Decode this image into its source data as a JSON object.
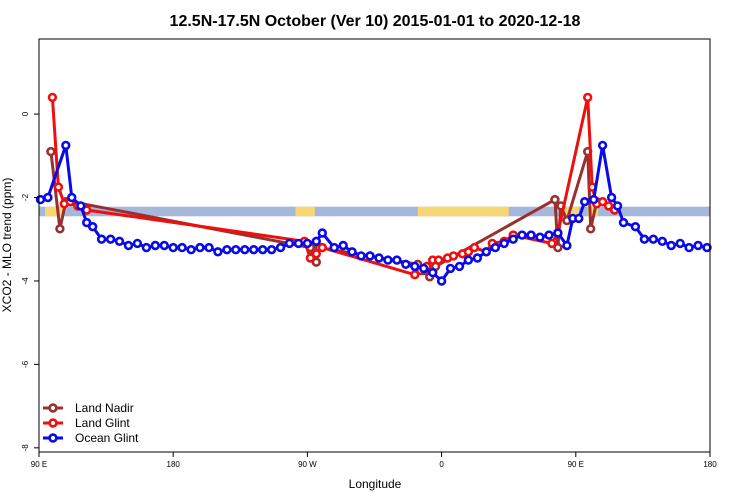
{
  "chart_data": {
    "type": "line",
    "title": "12.5N-17.5N October (Ver 10)   2015-01-01 to 2020-12-18",
    "xlabel": "Longitude",
    "ylabel": "XCO2 - MLO trend (ppm)",
    "xlim": [
      0,
      450
    ],
    "ylim": [
      -8.1,
      1.8
    ],
    "x_ticks": [
      {
        "value": 0,
        "label": "90 E"
      },
      {
        "value": 90,
        "label": "180"
      },
      {
        "value": 180,
        "label": "90 W"
      },
      {
        "value": 270,
        "label": "0"
      },
      {
        "value": 360,
        "label": "90 E"
      },
      {
        "value": 450,
        "label": "180"
      }
    ],
    "y_ticks": [
      {
        "value": 0,
        "label": "0"
      },
      {
        "value": -2,
        "label": "-2"
      },
      {
        "value": -4,
        "label": "-4"
      },
      {
        "value": -6,
        "label": "-6"
      },
      {
        "value": -8,
        "label": "-8"
      }
    ],
    "legend_position": "bottom-left",
    "land_strip": {
      "y_top": -2.22,
      "y_bottom": -2.45,
      "ocean_color": "#a5b8d9",
      "land_color": "#f7d774",
      "land_segments": [
        [
          4,
          16
        ],
        [
          172,
          185
        ],
        [
          254,
          315
        ],
        [
          350,
          362
        ],
        [
          368,
          375
        ]
      ]
    },
    "series": [
      {
        "name": "Land Nadir",
        "color": "#9b2f2f",
        "x": [
          8,
          14,
          18,
          22,
          182,
          184,
          186,
          188,
          254,
          258,
          262,
          266,
          346,
          348,
          350,
          354,
          368,
          370,
          374
        ],
        "y": [
          -0.9,
          -2.75,
          -2.1,
          -2.1,
          -3.2,
          -3.4,
          -3.55,
          -3.2,
          -3.6,
          -3.75,
          -3.9,
          -3.65,
          -2.05,
          -3.2,
          -2.2,
          -2.55,
          -0.9,
          -2.75,
          -2.1
        ]
      },
      {
        "name": "Land Glint",
        "color": "#ee0f0f",
        "x": [
          9,
          13,
          17,
          21,
          26,
          32,
          178,
          182,
          186,
          190,
          252,
          256,
          260,
          264,
          268,
          274,
          278,
          284,
          288,
          292,
          300,
          304,
          312,
          318,
          344,
          348,
          368,
          371,
          374,
          378,
          382,
          386
        ],
        "y": [
          0.4,
          -1.75,
          -2.15,
          -2.1,
          -2.2,
          -2.3,
          -3.05,
          -3.45,
          -3.35,
          -3.2,
          -3.85,
          -3.75,
          -3.65,
          -3.5,
          -3.5,
          -3.45,
          -3.4,
          -3.35,
          -3.3,
          -3.2,
          -3.3,
          -3.1,
          -3.05,
          -2.9,
          -3.1,
          -2.85,
          0.4,
          -1.75,
          -2.15,
          -2.1,
          -2.2,
          -2.3
        ]
      },
      {
        "name": "Ocean Glint",
        "color": "#0a0ae8",
        "x": [
          1,
          6,
          18,
          22,
          28,
          32,
          36,
          42,
          48,
          54,
          60,
          66,
          72,
          78,
          84,
          90,
          96,
          102,
          108,
          114,
          120,
          126,
          132,
          138,
          144,
          150,
          156,
          162,
          168,
          174,
          180,
          186,
          190,
          198,
          204,
          210,
          216,
          222,
          228,
          234,
          240,
          246,
          252,
          258,
          264,
          270,
          276,
          282,
          288,
          294,
          300,
          306,
          312,
          318,
          324,
          330,
          336,
          342,
          348,
          354,
          358,
          362,
          366,
          372,
          378,
          384,
          388,
          392,
          400,
          406,
          412,
          418,
          424,
          430,
          436,
          442,
          448
        ],
        "y": [
          -2.05,
          -2.0,
          -0.75,
          -2.0,
          -2.2,
          -2.6,
          -2.7,
          -3.0,
          -3.0,
          -3.05,
          -3.15,
          -3.1,
          -3.2,
          -3.15,
          -3.15,
          -3.2,
          -3.2,
          -3.25,
          -3.2,
          -3.2,
          -3.3,
          -3.25,
          -3.25,
          -3.25,
          -3.25,
          -3.25,
          -3.25,
          -3.2,
          -3.1,
          -3.1,
          -3.1,
          -3.05,
          -2.85,
          -3.2,
          -3.15,
          -3.3,
          -3.4,
          -3.4,
          -3.45,
          -3.5,
          -3.5,
          -3.6,
          -3.65,
          -3.7,
          -3.8,
          -4.0,
          -3.7,
          -3.65,
          -3.5,
          -3.45,
          -3.3,
          -3.2,
          -3.1,
          -3.0,
          -2.9,
          -2.9,
          -2.95,
          -2.9,
          -2.85,
          -3.15,
          -2.5,
          -2.5,
          -2.1,
          -2.05,
          -0.75,
          -2.0,
          -2.2,
          -2.6,
          -2.7,
          -3.0,
          -3.0,
          -3.05,
          -3.15,
          -3.1,
          -3.2,
          -3.15,
          -3.2
        ]
      }
    ]
  }
}
